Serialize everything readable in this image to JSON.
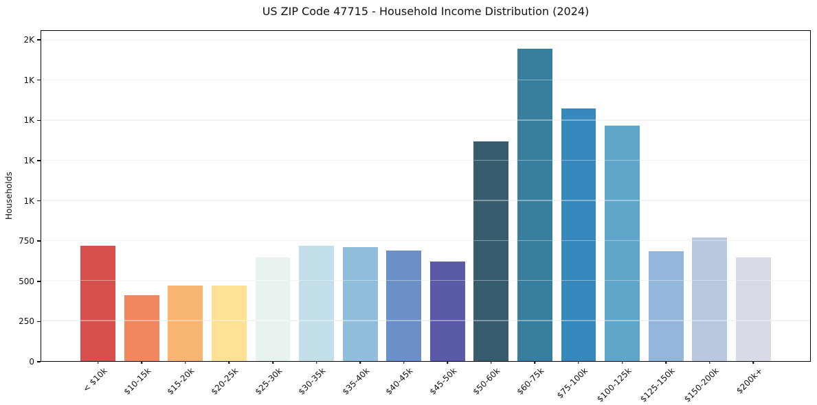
{
  "chart_data": {
    "type": "bar",
    "title": "US ZIP Code 47715 - Household Income Distribution (2024)",
    "xlabel": "",
    "ylabel": "Households",
    "categories": [
      "< $10k",
      "$10-15k",
      "$15-20k",
      "$20-25k",
      "$25-30k",
      "$30-35k",
      "$35-40k",
      "$40-45k",
      "$45-50k",
      "$50-60k",
      "$60-75k",
      "$75-100k",
      "$100-125k",
      "$125-150k",
      "$150-200k",
      "$200k+"
    ],
    "values": [
      720,
      410,
      470,
      470,
      645,
      720,
      710,
      690,
      620,
      1370,
      1950,
      1575,
      1470,
      685,
      770,
      645
    ],
    "bar_colors": [
      "#d6514d",
      "#f0875f",
      "#f8b471",
      "#fde295",
      "#e7f2f1",
      "#c3e0ea",
      "#92bedd",
      "#6b90c8",
      "#5b5aa8",
      "#365c6e",
      "#377e9f",
      "#3789bd",
      "#5fa6cb",
      "#92b7da",
      "#b9c7df",
      "#d9dae8"
    ],
    "ylim": [
      0,
      2060
    ],
    "yticks": [
      {
        "value": 0,
        "label": "0"
      },
      {
        "value": 250,
        "label": "250"
      },
      {
        "value": 500,
        "label": "500"
      },
      {
        "value": 750,
        "label": "750"
      },
      {
        "value": 1000,
        "label": "1K"
      },
      {
        "value": 1250,
        "label": "1K"
      },
      {
        "value": 1500,
        "label": "1K"
      },
      {
        "value": 1750,
        "label": "1K"
      },
      {
        "value": 2000,
        "label": "2K"
      }
    ],
    "grid": "horizontal",
    "legend": "none",
    "background_color": "#ffffff",
    "spine_color": "#000000",
    "grid_color": "#ececec",
    "text_color": "#111111"
  }
}
